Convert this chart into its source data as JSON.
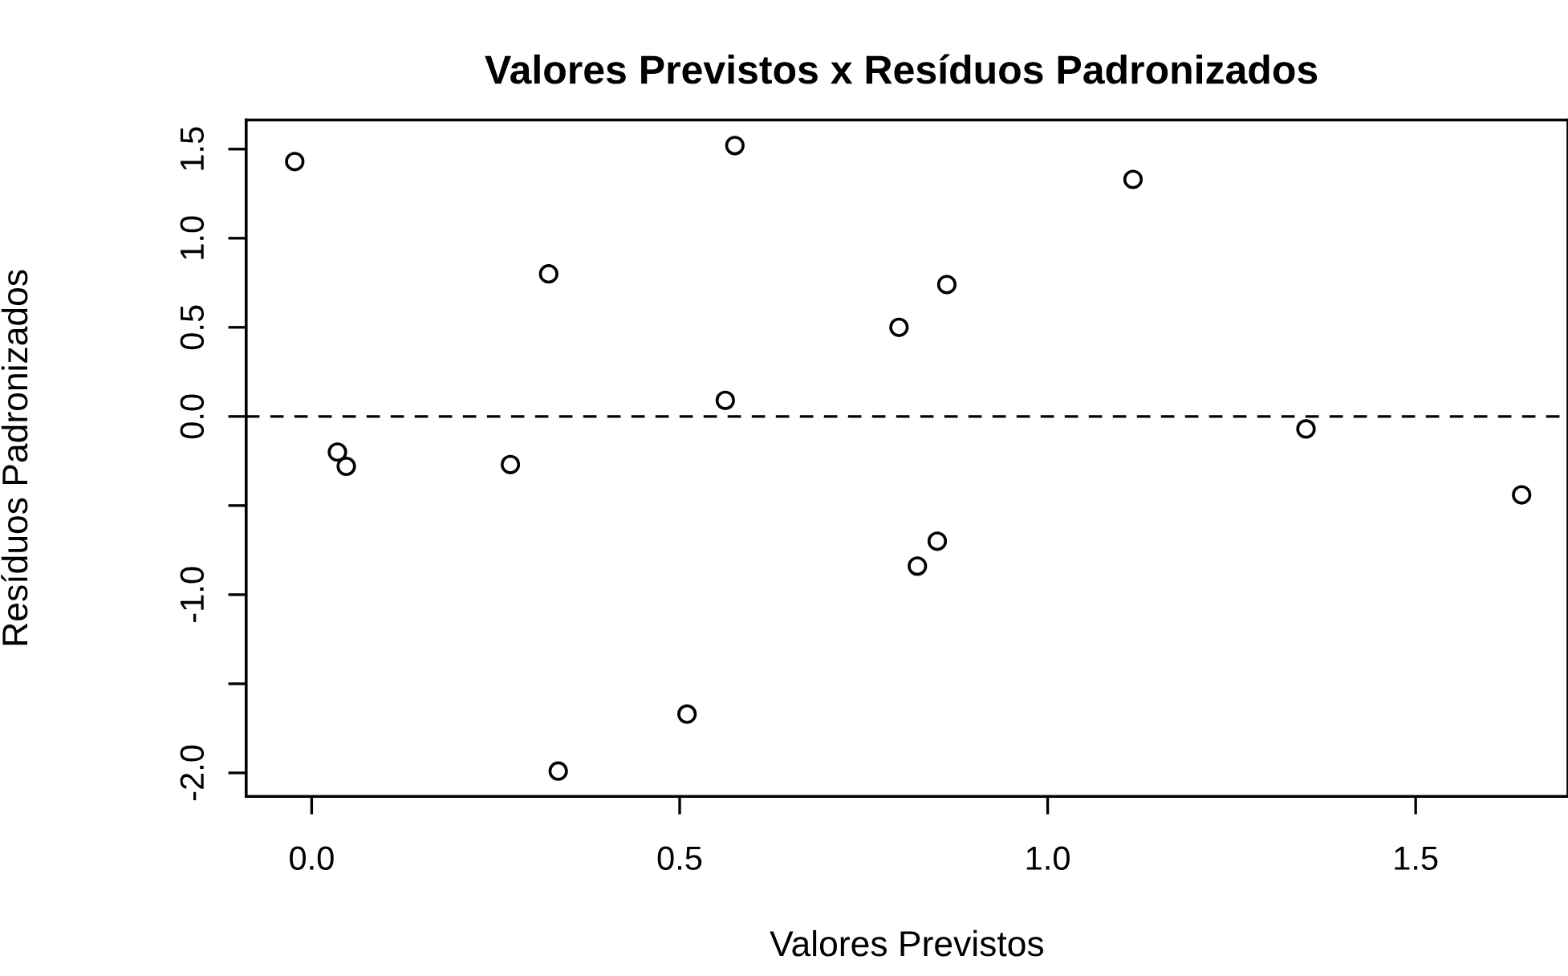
{
  "chart_data": {
    "type": "scatter",
    "title": "Valores Previstos x Resíduos Padronizados",
    "xlabel": "Valores Previstos",
    "ylabel": "Resíduos Padronizados",
    "x": [
      -0.023,
      0.035,
      0.047,
      0.27,
      0.322,
      0.335,
      0.51,
      0.562,
      0.575,
      0.798,
      0.823,
      0.85,
      0.863,
      1.116,
      1.351,
      1.644
    ],
    "values": [
      1.43,
      -0.2,
      -0.28,
      -0.27,
      0.8,
      -1.99,
      -1.67,
      0.09,
      1.52,
      0.5,
      -0.84,
      -0.7,
      0.74,
      1.33,
      -0.07,
      -0.44
    ],
    "color": "#000000",
    "marker": "circle",
    "xlim": [
      -0.089,
      1.707
    ],
    "ylim": [
      -2.132,
      1.663
    ],
    "xticks": [
      {
        "value": 0,
        "label": "0.0"
      },
      0.5,
      {
        "value": 1,
        "label": "1.0"
      },
      1.5
    ],
    "yticks": [
      {
        "value": -2,
        "label": "-2.0"
      },
      {
        "value": -1.5,
        "label": null
      },
      {
        "value": -1,
        "label": "-1.0"
      },
      {
        "value": -0.5,
        "label": null
      },
      {
        "value": 0,
        "label": "0.0"
      },
      0.5,
      {
        "value": 1,
        "label": "1.0"
      },
      1.5
    ],
    "ref_lines": [
      {
        "axis": "y",
        "value": 0,
        "line_style": "dashed",
        "color": "#000000"
      }
    ],
    "grid": false,
    "legend": false
  }
}
